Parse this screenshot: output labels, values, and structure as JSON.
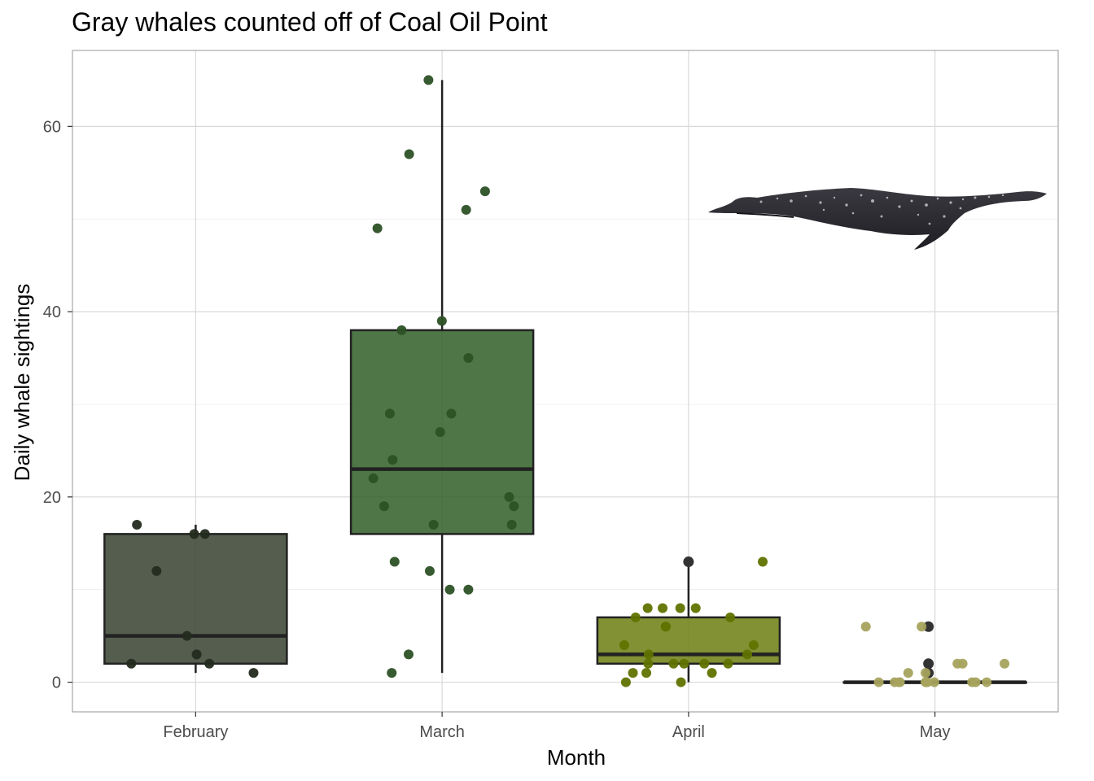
{
  "chart_data": {
    "type": "box",
    "title": "Gray whales counted off of Coal Oil Point",
    "xlabel": "Month",
    "ylabel": "Daily whale sightings",
    "ylim": [
      -3.2,
      68.2
    ],
    "yticks": [
      0,
      20,
      40,
      60
    ],
    "grid": true,
    "categories": [
      "February",
      "March",
      "April",
      "May"
    ],
    "colors": {
      "February": {
        "box": "#36412f",
        "point": "#232b1e"
      },
      "March": {
        "box": "#2f5e27",
        "point": "#2c5125"
      },
      "April": {
        "box": "#6b7e10",
        "point": "#607300"
      },
      "May": {
        "box": "#a9a65a",
        "point": "#a6a35d"
      }
    },
    "boxes": [
      {
        "category": "February",
        "min": 1,
        "q1": 2,
        "median": 5,
        "q3": 16,
        "max": 17
      },
      {
        "category": "March",
        "min": 1,
        "q1": 16,
        "median": 23,
        "q3": 38,
        "max": 65
      },
      {
        "category": "April",
        "min": 0,
        "q1": 2,
        "median": 3,
        "q3": 7,
        "max": 13
      },
      {
        "category": "May",
        "min": 0,
        "q1": 0,
        "median": 0,
        "q3": 0,
        "max": 0
      }
    ],
    "points": [
      {
        "category": "February",
        "values": [
          16,
          16,
          17,
          12,
          5,
          3,
          2,
          1,
          2
        ]
      },
      {
        "category": "March",
        "values": [
          65,
          57,
          53,
          51,
          49,
          39,
          38,
          35,
          29,
          29,
          27,
          24,
          22,
          20,
          19,
          19,
          17,
          17,
          13,
          12,
          10,
          10,
          3,
          1
        ]
      },
      {
        "category": "April",
        "values": [
          13,
          8,
          8,
          8,
          8,
          7,
          7,
          6,
          6,
          4,
          4,
          3,
          3,
          2,
          2,
          2,
          2,
          2,
          1,
          1,
          1,
          0,
          0
        ]
      },
      {
        "category": "May",
        "values": [
          6,
          6,
          2,
          2,
          2,
          1,
          1,
          0,
          0,
          0,
          0,
          0,
          0,
          0,
          0,
          0,
          0,
          0
        ]
      }
    ],
    "outliers": [
      {
        "category": "April",
        "value": 13
      },
      {
        "category": "May",
        "value": 6
      },
      {
        "category": "May",
        "value": 2
      },
      {
        "category": "May",
        "value": 1
      }
    ],
    "annotation_image": "gray-whale-illustration"
  }
}
